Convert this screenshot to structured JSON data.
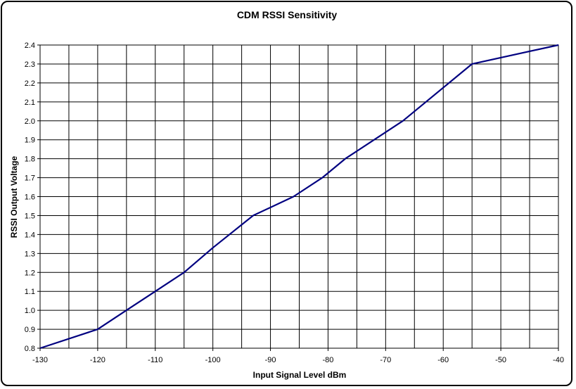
{
  "chart_data": {
    "type": "line",
    "title": "CDM RSSI Sensitivity",
    "xlabel": "Input Signal Level dBm",
    "ylabel": "RSSI Output Voltage",
    "xlim": [
      -130,
      -40
    ],
    "ylim": [
      0.8,
      2.4
    ],
    "x_ticks": [
      -130,
      -120,
      -110,
      -100,
      -90,
      -80,
      -70,
      -60,
      -50,
      -40
    ],
    "x_tick_labels": [
      "-130",
      "-120",
      "-110",
      "-100",
      "-90",
      "-80",
      "-70",
      "-60",
      "-50",
      "-40"
    ],
    "y_ticks": [
      0.8,
      0.9,
      1.0,
      1.1,
      1.2,
      1.3,
      1.4,
      1.5,
      1.6,
      1.7,
      1.8,
      1.9,
      2.0,
      2.1,
      2.2,
      2.3,
      2.4
    ],
    "y_tick_labels": [
      "0.8",
      "0.9",
      "1.0",
      "1.1",
      "1.2",
      "1.3",
      "1.4",
      "1.5",
      "1.6",
      "1.7",
      "1.8",
      "1.9",
      "2.0",
      "2.1",
      "2.2",
      "2.3",
      "2.4"
    ],
    "x_grid_step": 5,
    "grid": true,
    "legend": "none",
    "series": [
      {
        "color": "#000080",
        "x": [
          -130,
          -120,
          -115,
          -110,
          -105,
          -100,
          -93,
          -86,
          -81,
          -77,
          -67,
          -55,
          -40
        ],
        "y": [
          0.8,
          0.9,
          1.0,
          1.1,
          1.2,
          1.33,
          1.5,
          1.6,
          1.7,
          1.8,
          2.0,
          2.3,
          2.4
        ]
      }
    ]
  }
}
